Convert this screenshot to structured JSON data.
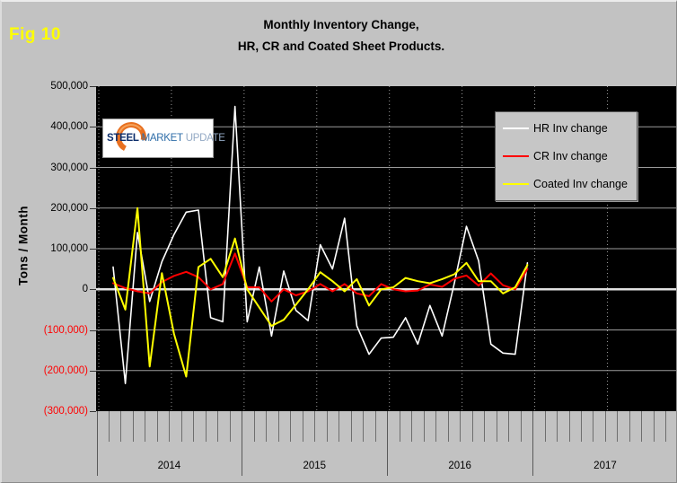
{
  "figure_label": "Fig 10",
  "title": {
    "line1": "Monthly Inventory Change,",
    "line2": "HR, CR and Coated Sheet  Products."
  },
  "y_axis": {
    "title": "Tons / Month",
    "ticks": [
      {
        "label": "500,000",
        "value": 500000,
        "negative": false
      },
      {
        "label": "400,000",
        "value": 400000,
        "negative": false
      },
      {
        "label": "300,000",
        "value": 300000,
        "negative": false
      },
      {
        "label": "200,000",
        "value": 200000,
        "negative": false
      },
      {
        "label": "100,000",
        "value": 100000,
        "negative": false
      },
      {
        "label": "0",
        "value": 0,
        "negative": false
      },
      {
        "label": "(100,000)",
        "value": -100000,
        "negative": true
      },
      {
        "label": "(200,000)",
        "value": -200000,
        "negative": true
      },
      {
        "label": "(300,000)",
        "value": -300000,
        "negative": true
      }
    ],
    "negative_color": "#ff0000"
  },
  "x_axis": {
    "years": [
      "2014",
      "2015",
      "2016",
      "2017"
    ]
  },
  "legend": [
    {
      "label": "HR Inv change",
      "color": "#ffffff",
      "thickness": 2
    },
    {
      "label": "CR Inv change",
      "color": "#ff0000",
      "thickness": 2
    },
    {
      "label": "Coated Inv change",
      "color": "#ffff00",
      "thickness": 2
    }
  ],
  "logo": {
    "word1": "STEEL",
    "word2": "MARKET",
    "word3": "UPDATE",
    "accent_color": "#e87020"
  },
  "colors": {
    "background": "#c2c2c2",
    "plot_background": "#000000",
    "gridline": "#9b9b9b",
    "zero_line": "#e0e0e0",
    "fig_label": "#ffff00"
  },
  "chart_data": {
    "type": "line",
    "title": "Monthly Inventory Change, HR, CR and Coated Sheet Products.",
    "ylabel": "Tons / Month",
    "ylim": [
      -300000,
      500000
    ],
    "ytick_step": 100000,
    "grid": true,
    "legend_position": "top-right",
    "x": [
      "Feb-14",
      "Mar-14",
      "Apr-14",
      "May-14",
      "Jun-14",
      "Jul-14",
      "Aug-14",
      "Sep-14",
      "Oct-14",
      "Nov-14",
      "Dec-14",
      "Jan-15",
      "Feb-15",
      "Mar-15",
      "Apr-15",
      "May-15",
      "Jun-15",
      "Jul-15",
      "Aug-15",
      "Sep-15",
      "Oct-15",
      "Nov-15",
      "Dec-15",
      "Jan-16",
      "Feb-16",
      "Mar-16",
      "Apr-16",
      "May-16",
      "Jun-16",
      "Jul-16",
      "Aug-16",
      "Sep-16",
      "Oct-16",
      "Nov-16",
      "Dec-16"
    ],
    "series": [
      {
        "name": "HR Inv change",
        "color": "#ffffff",
        "values": [
          55000,
          -232000,
          140000,
          -30000,
          68000,
          135000,
          190000,
          195000,
          -70000,
          -80000,
          450000,
          -80000,
          55000,
          -115000,
          45000,
          -52000,
          -77000,
          110000,
          50000,
          175000,
          -90000,
          -160000,
          -120000,
          -118000,
          -70000,
          -135000,
          -40000,
          -115000,
          15000,
          155000,
          70000,
          -135000,
          -157000,
          -160000,
          65000
        ]
      },
      {
        "name": "CR Inv change",
        "color": "#ff0000",
        "values": [
          15000,
          3000,
          -5000,
          -10000,
          18000,
          33000,
          43000,
          30000,
          0,
          13000,
          88000,
          5000,
          5000,
          -30000,
          0,
          -15000,
          -5000,
          13000,
          -5000,
          13000,
          -10000,
          -17000,
          13000,
          0,
          -5000,
          -3000,
          12000,
          6000,
          26000,
          34000,
          9000,
          39000,
          10000,
          0,
          50000
        ]
      },
      {
        "name": "Coated Inv change",
        "color": "#ffff00",
        "values": [
          28000,
          -50000,
          200000,
          -190000,
          40000,
          -110000,
          -215000,
          55000,
          75000,
          30000,
          125000,
          0,
          -45000,
          -90000,
          -75000,
          -38000,
          0,
          42000,
          20000,
          -5000,
          25000,
          -40000,
          0,
          5000,
          28000,
          20000,
          15000,
          25000,
          37000,
          65000,
          20000,
          20000,
          -10000,
          5000,
          60000
        ]
      }
    ]
  }
}
